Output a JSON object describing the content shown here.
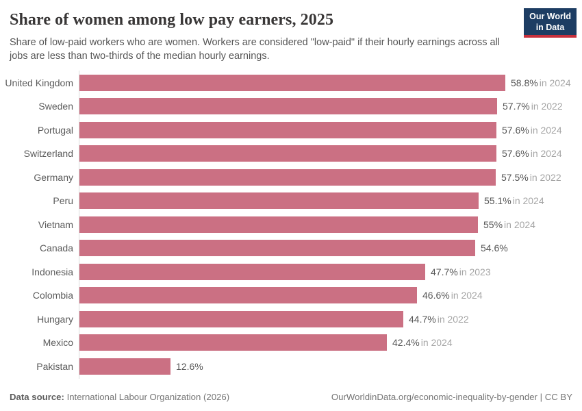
{
  "header": {
    "title": "Share of women among low pay earners, 2025",
    "subtitle": "Share of low-paid workers who are women. Workers are considered \"low-paid\" if their hourly earnings across all jobs are less than two-thirds of the median hourly earnings.",
    "logo": {
      "line1": "Our World",
      "line2": "in Data"
    }
  },
  "chart_data": {
    "type": "bar",
    "orientation": "horizontal",
    "title": "Share of women among low pay earners, 2025",
    "xlabel": "",
    "ylabel": "",
    "xlim": [
      0,
      58.8
    ],
    "grid": false,
    "legend": false,
    "bar_color": "#cb7083",
    "categories": [
      "United Kingdom",
      "Sweden",
      "Portugal",
      "Switzerland",
      "Germany",
      "Peru",
      "Vietnam",
      "Canada",
      "Indonesia",
      "Colombia",
      "Hungary",
      "Mexico",
      "Pakistan"
    ],
    "values": [
      58.8,
      57.7,
      57.6,
      57.6,
      57.5,
      55.1,
      55,
      54.6,
      47.7,
      46.6,
      44.7,
      42.4,
      12.6
    ],
    "value_labels": [
      "58.8%",
      "57.7%",
      "57.6%",
      "57.6%",
      "57.5%",
      "55.1%",
      "55%",
      "54.6%",
      "47.7%",
      "46.6%",
      "44.7%",
      "42.4%",
      "12.6%"
    ],
    "year_labels": [
      "in 2024",
      "in 2022",
      "in 2024",
      "in 2024",
      "in 2022",
      "in 2024",
      "in 2024",
      "",
      "in 2023",
      "in 2024",
      "in 2022",
      "in 2024",
      ""
    ]
  },
  "footer": {
    "source_label": "Data source:",
    "source_value": "International Labour Organization (2026)",
    "link": "OurWorldinData.org/economic-inequality-by-gender | CC BY"
  },
  "colors": {
    "bar": "#cb7083",
    "logo_navy": "#1d3d63",
    "logo_red": "#c7303c",
    "title_text": "#383636",
    "subtitle_text": "#555555",
    "label_text": "#5b5b5b",
    "value_text": "#565656",
    "year_text": "#a5a5a5",
    "axis_line": "#dbdbdb"
  }
}
